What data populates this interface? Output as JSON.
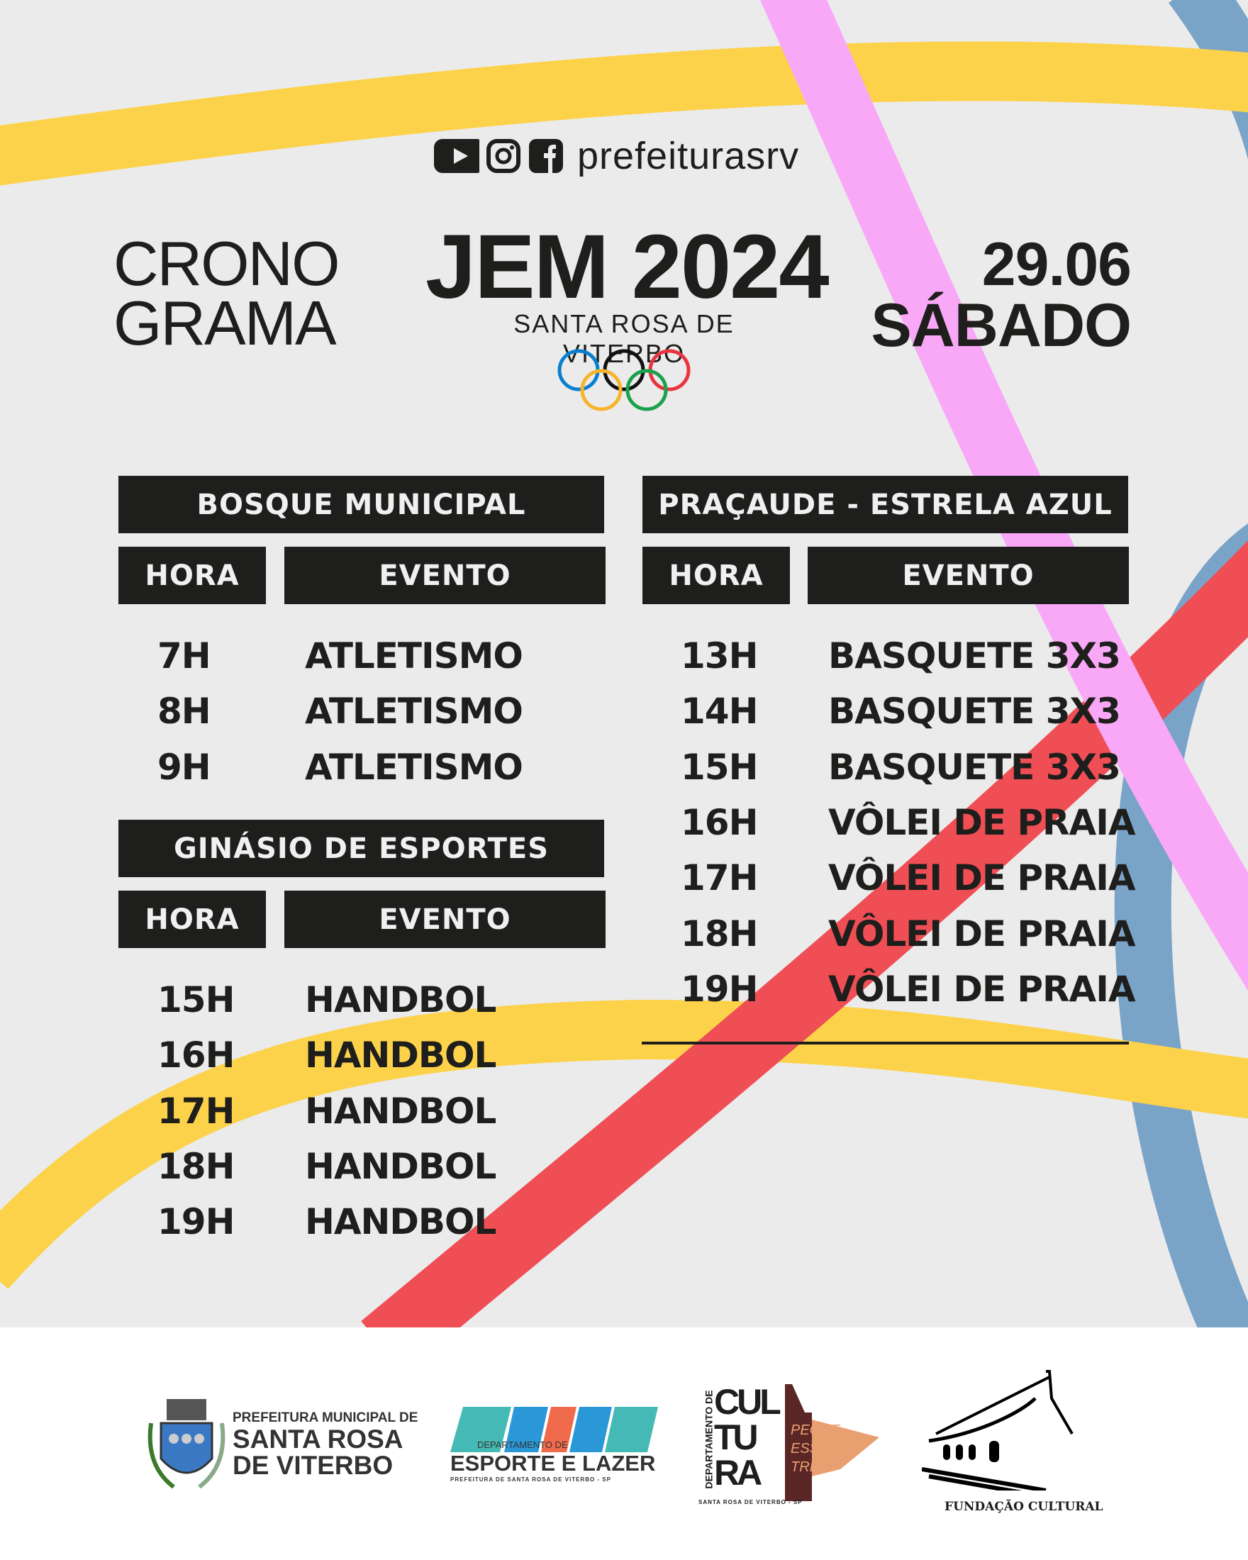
{
  "social": {
    "icons": [
      "youtube-icon",
      "instagram-icon",
      "facebook-icon"
    ],
    "handle": "prefeiturasrv"
  },
  "header": {
    "title_line1": "CRONO",
    "title_line2": "GRAMA",
    "event": "JEM 2024",
    "city": "SANTA ROSA DE VITERBO",
    "date": "29.06",
    "weekday": "SÁBADO"
  },
  "colors": {
    "background": "#ebebeb",
    "dark": "#1e1e1c",
    "yellow": "#fcd24a",
    "pink": "#f9a8f8",
    "blue": "#7aa3c8",
    "red": "#f04e55"
  },
  "venues": [
    {
      "name": "BOSQUE MUNICIPAL",
      "col_hora": "HORA",
      "col_evento": "EVENTO",
      "rows": [
        {
          "hora": "7H",
          "evento": "ATLETISMO"
        },
        {
          "hora": "8H",
          "evento": "ATLETISMO"
        },
        {
          "hora": "9H",
          "evento": "ATLETISMO"
        }
      ]
    },
    {
      "name": "GINÁSIO DE ESPORTES",
      "col_hora": "HORA",
      "col_evento": "EVENTO",
      "rows": [
        {
          "hora": "15H",
          "evento": "HANDBOL"
        },
        {
          "hora": "16H",
          "evento": "HANDBOL"
        },
        {
          "hora": "17H",
          "evento": "HANDBOL"
        },
        {
          "hora": "18H",
          "evento": "HANDBOL"
        },
        {
          "hora": "19H",
          "evento": "HANDBOL"
        }
      ]
    },
    {
      "name": "PRAÇAUDE - ESTRELA AZUL",
      "col_hora": "HORA",
      "col_evento": "EVENTO",
      "rows": [
        {
          "hora": "13H",
          "evento": "BASQUETE 3X3"
        },
        {
          "hora": "14H",
          "evento": "BASQUETE 3X3"
        },
        {
          "hora": "15H",
          "evento": "BASQUETE 3X3"
        },
        {
          "hora": "16H",
          "evento": "VÔLEI DE PRAIA"
        },
        {
          "hora": "17H",
          "evento": "VÔLEI DE PRAIA"
        },
        {
          "hora": "18H",
          "evento": "VÔLEI DE PRAIA"
        },
        {
          "hora": "19H",
          "evento": "VÔLEI DE PRAIA"
        }
      ]
    }
  ],
  "footer": {
    "prefeitura": {
      "line1": "PREFEITURA MUNICIPAL DE",
      "line2": "SANTA ROSA",
      "line3": "DE VITERBO"
    },
    "esporte": {
      "line1": "DEPARTAMENTO DE",
      "line2": "ESPORTE E LAZER",
      "line3": "PREFEITURA DE SANTA ROSA DE VITERBO - SP"
    },
    "cultura": {
      "vertical": "DEPARTAMENTO DE",
      "l1": "CUL",
      "l2": "TU",
      "l3": "RA",
      "slogan1": "PEGUE",
      "slogan2": "ESSE",
      "slogan3": "TREM!",
      "bottom": "SANTA ROSA DE VITERBO - SP"
    },
    "fundacao": {
      "name": "FUNDAÇÃO CULTURAL"
    }
  }
}
